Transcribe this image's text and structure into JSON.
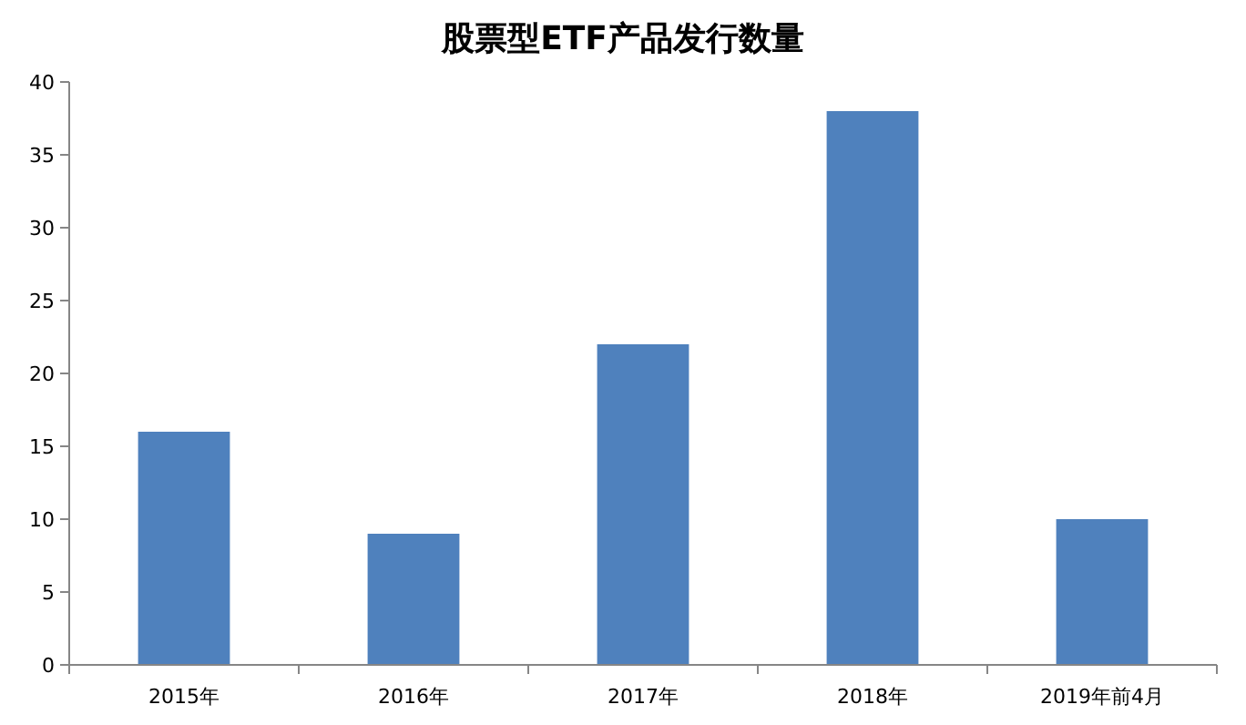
{
  "chart_data": {
    "type": "bar",
    "title": "股票型ETF产品发行数量",
    "categories": [
      "2015年",
      "2016年",
      "2017年",
      "2018年",
      "2019年前4月"
    ],
    "values": [
      16,
      9,
      22,
      38,
      10
    ],
    "color": "#4f81bd",
    "ylim": [
      0,
      40
    ],
    "yticks": [
      0,
      5,
      10,
      15,
      20,
      25,
      30,
      35,
      40
    ],
    "grid": false,
    "legend": false
  }
}
